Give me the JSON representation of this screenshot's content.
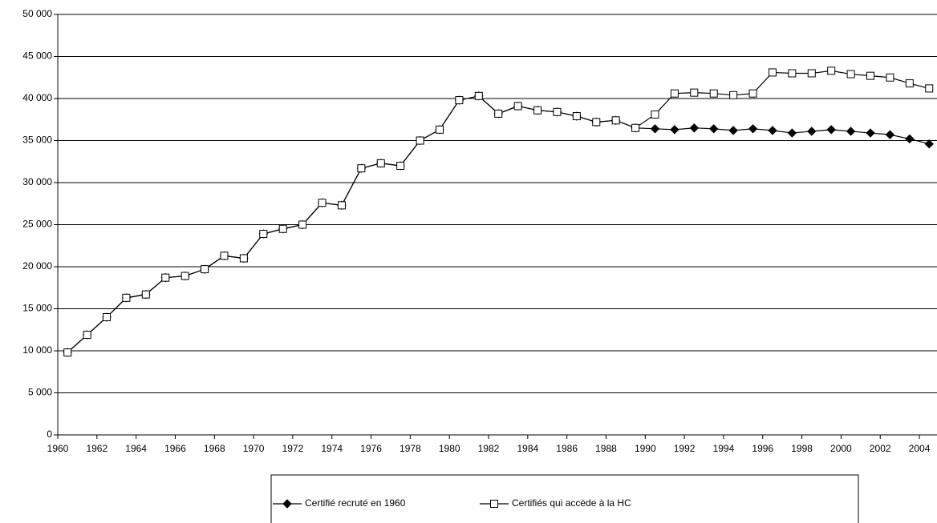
{
  "chart_data": {
    "type": "line",
    "x": [
      1960.5,
      1961.5,
      1962.5,
      1963.5,
      1964.5,
      1965.5,
      1966.5,
      1967.5,
      1968.5,
      1969.5,
      1970.5,
      1971.5,
      1972.5,
      1973.5,
      1974.5,
      1975.5,
      1976.5,
      1977.5,
      1978.5,
      1979.5,
      1980.5,
      1981.5,
      1982.5,
      1983.5,
      1984.5,
      1985.5,
      1986.5,
      1987.5,
      1988.5,
      1989.5,
      1990.5,
      1991.5,
      1992.5,
      1993.5,
      1994.5,
      1995.5,
      1996.5,
      1997.5,
      1998.5,
      1999.5,
      2000.5,
      2001.5,
      2002.5,
      2003.5,
      2004.5
    ],
    "series": [
      {
        "name": "Certifié recruté en 1960",
        "color": "#000000",
        "marker": "diamond",
        "values": [
          9800,
          11900,
          14000,
          16300,
          16700,
          18700,
          18900,
          19700,
          21300,
          21000,
          23900,
          24500,
          25000,
          27600,
          27300,
          31700,
          32300,
          32000,
          35000,
          36300,
          39800,
          40300,
          38200,
          39100,
          38600,
          38400,
          37900,
          37200,
          37400,
          36500,
          36400,
          36300,
          36500,
          36400,
          36200,
          36400,
          36200,
          35900,
          36100,
          36300,
          36100,
          35900,
          35700,
          35200,
          34600
        ]
      },
      {
        "name": "Certifiés qui accède à la HC",
        "color": "#000000",
        "marker": "square",
        "values": [
          9800,
          11900,
          14000,
          16300,
          16700,
          18700,
          18900,
          19700,
          21300,
          21000,
          23900,
          24500,
          25000,
          27600,
          27300,
          31700,
          32300,
          32000,
          35000,
          36300,
          39800,
          40300,
          38200,
          39100,
          38600,
          38400,
          37900,
          37200,
          37400,
          36500,
          38100,
          40600,
          40700,
          40600,
          40400,
          40600,
          43100,
          43000,
          43000,
          43300,
          42900,
          42700,
          42500,
          41800,
          41200
        ]
      }
    ],
    "xlim": [
      1960,
      2004.9
    ],
    "xticks": [
      1960,
      1962,
      1964,
      1966,
      1968,
      1970,
      1972,
      1974,
      1976,
      1978,
      1980,
      1982,
      1984,
      1986,
      1988,
      1990,
      1992,
      1994,
      1996,
      1998,
      2000,
      2002,
      2004
    ],
    "ylim": [
      0,
      50000
    ],
    "yticks": [
      0,
      {
        "value": 5000,
        "label": "5 000"
      },
      {
        "value": 10000,
        "label": "10 000"
      },
      {
        "value": 15000,
        "label": "15 000"
      },
      {
        "value": 20000,
        "label": "20 000"
      },
      {
        "value": 25000,
        "label": "25 000"
      },
      {
        "value": 30000,
        "label": "30 000"
      },
      {
        "value": 35000,
        "label": "35 000"
      },
      {
        "value": 40000,
        "label": "40 000"
      },
      {
        "value": 45000,
        "label": "45 000"
      },
      {
        "value": 50000,
        "label": "50 000"
      }
    ],
    "grid": true
  }
}
